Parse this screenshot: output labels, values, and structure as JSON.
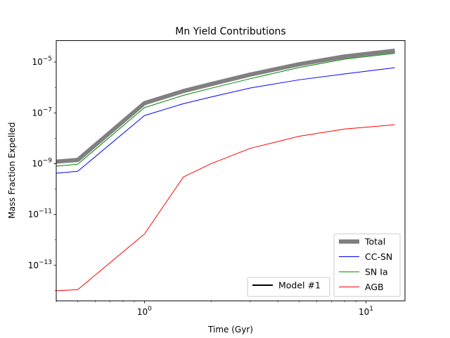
{
  "chart_data": {
    "type": "line",
    "title": "Mn Yield Contributions",
    "xlabel": "Time (Gyr)",
    "ylabel": "Mass Fraction Expelled",
    "xscale": "log",
    "yscale": "log",
    "xlim": [
      0.4,
      15
    ],
    "ylim": [
      4e-15,
      7e-05
    ],
    "grid": false,
    "x_ticks": [
      {
        "value": 1,
        "base": "10",
        "exp": "0"
      },
      {
        "value": 10,
        "base": "10",
        "exp": "1"
      }
    ],
    "y_ticks": [
      {
        "value": 1e-13,
        "base": "10",
        "exp": "−13"
      },
      {
        "value": 1e-11,
        "base": "10",
        "exp": "−11"
      },
      {
        "value": 1e-09,
        "base": "10",
        "exp": "−9"
      },
      {
        "value": 1e-07,
        "base": "10",
        "exp": "−7"
      },
      {
        "value": 1e-05,
        "base": "10",
        "exp": "−5"
      }
    ],
    "x": [
      0.4,
      0.5,
      1.0,
      1.5,
      2.0,
      3.0,
      5.0,
      8.0,
      13.5
    ],
    "series": [
      {
        "name": "Total",
        "color": "#808080",
        "width": 6,
        "values": [
          1.2e-09,
          1.4e-09,
          2.4e-07,
          7.2e-07,
          1.35e-06,
          3.2e-06,
          8.2e-06,
          1.65e-05,
          2.8e-05
        ]
      },
      {
        "name": "CC-SN",
        "color": "#0000ff",
        "width": 1,
        "values": [
          4.2e-10,
          5e-10,
          7.8e-08,
          2.3e-07,
          4.2e-07,
          9.5e-07,
          2e-06,
          3.4e-06,
          6e-06
        ]
      },
      {
        "name": "SN Ia",
        "color": "#008000",
        "width": 1,
        "values": [
          8e-10,
          9.5e-10,
          1.6e-07,
          4.9e-07,
          9.3e-07,
          2.2e-06,
          6.1e-06,
          1.3e-05,
          2.2e-05
        ]
      },
      {
        "name": "AGB",
        "color": "#ff0000",
        "width": 1,
        "values": [
          1e-14,
          1.1e-14,
          1.7e-12,
          3e-10,
          1e-09,
          4e-09,
          1.2e-08,
          2.3e-08,
          3.4e-08
        ]
      }
    ],
    "legends": [
      {
        "location": "lower-right",
        "entries": [
          "Total",
          "CC-SN",
          "SN Ia",
          "AGB"
        ]
      },
      {
        "location": "lower-center",
        "entries": [
          {
            "name": "Model #1",
            "color": "#000000"
          }
        ]
      }
    ]
  }
}
